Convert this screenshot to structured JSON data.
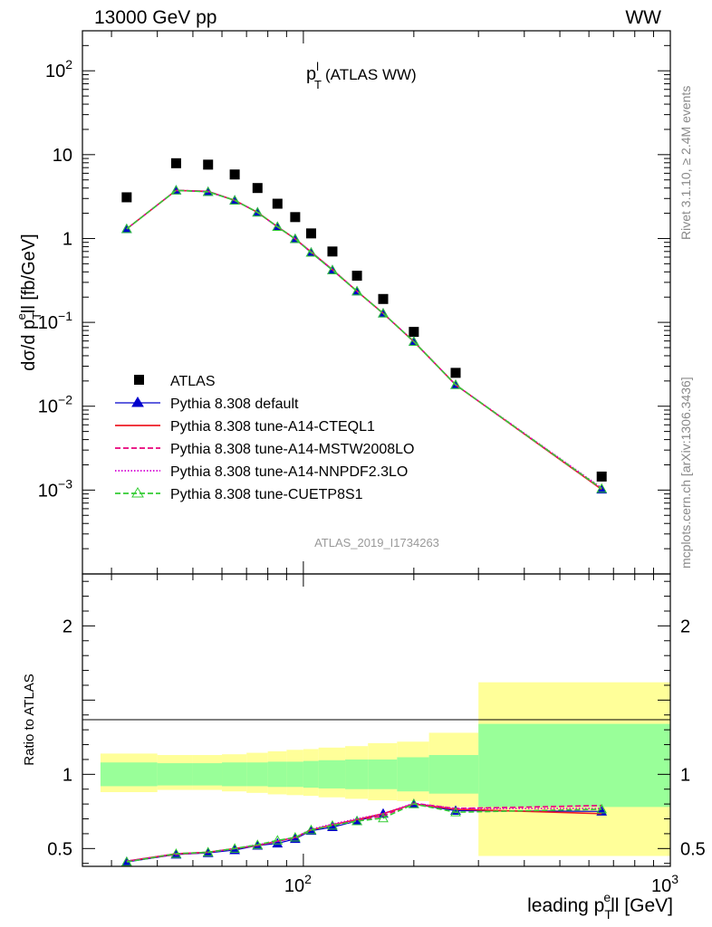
{
  "header": {
    "left": "13000 GeV pp",
    "right": "WW"
  },
  "side_labels": {
    "rivet": "Rivet 3.1.10, ≥ 2.4M events",
    "mcplots": "mcplots.cern.ch [arXiv:1306.3436]"
  },
  "colors": {
    "data": "#000000",
    "default": "#0000cc",
    "cteql1": "#ee1c24",
    "mstw": "#e8007a",
    "nnpdf": "#d400d4",
    "cuetp8s1": "#33cc33",
    "band_inner": "#99ff99",
    "band_outer": "#ffff99"
  },
  "chart_data": [
    {
      "type": "scatter",
      "title_main": "p",
      "title_sup": "l",
      "title_sub": "T",
      "title_rest": "(ATLAS WW)",
      "watermark": "ATLAS_2019_I1734263",
      "ylabel": {
        "pre": "dσ/d p",
        "sub": "T",
        "sup": "e",
        "post": "ll [fb/GeV]"
      },
      "log_y": true,
      "log_x": true,
      "xlim": [
        25,
        1000
      ],
      "ylim": [
        0.0001,
        300
      ],
      "yticks": [
        {
          "v": 0.001,
          "base": "10",
          "exp": "−3"
        },
        {
          "v": 0.01,
          "base": "10",
          "exp": "−2"
        },
        {
          "v": 0.1,
          "base": "10",
          "exp": "−1"
        },
        {
          "v": 1,
          "base": "1",
          "exp": ""
        },
        {
          "v": 10,
          "base": "10",
          "exp": ""
        },
        {
          "v": 100,
          "base": "10",
          "exp": "2"
        }
      ],
      "x": [
        33,
        45,
        55,
        65,
        75,
        85,
        95,
        105,
        120,
        140,
        165,
        200,
        260,
        650
      ],
      "series": [
        {
          "name": "ATLAS",
          "key": "data",
          "marker": "square",
          "values": [
            3.1,
            7.9,
            7.6,
            5.8,
            4.0,
            2.6,
            1.8,
            1.15,
            0.7,
            0.36,
            0.19,
            0.077,
            0.025,
            0.00145
          ]
        },
        {
          "name": "Pythia 8.308 default",
          "key": "default",
          "marker": "triangle",
          "values": [
            1.3,
            3.75,
            3.6,
            2.85,
            2.05,
            1.38,
            0.99,
            0.68,
            0.42,
            0.235,
            0.128,
            0.059,
            0.018,
            0.00102
          ]
        },
        {
          "name": "Pythia 8.308 tune-A14-CTEQL1",
          "key": "cteql1",
          "line": "solid",
          "values": [
            1.3,
            3.75,
            3.65,
            2.85,
            2.05,
            1.38,
            0.99,
            0.69,
            0.425,
            0.235,
            0.128,
            0.059,
            0.018,
            0.00102
          ]
        },
        {
          "name": "Pythia 8.308 tune-A14-MSTW2008LO",
          "key": "mstw",
          "line": "dashed",
          "values": [
            1.3,
            3.75,
            3.65,
            2.85,
            2.05,
            1.38,
            0.99,
            0.69,
            0.425,
            0.235,
            0.128,
            0.059,
            0.018,
            0.00104
          ]
        },
        {
          "name": "Pythia 8.308 tune-A14-NNPDF2.3LO",
          "key": "nnpdf",
          "line": "dotted",
          "values": [
            1.3,
            3.75,
            3.65,
            2.85,
            2.05,
            1.38,
            0.99,
            0.69,
            0.425,
            0.235,
            0.128,
            0.059,
            0.018,
            0.00106
          ]
        },
        {
          "name": "Pythia 8.308 tune-CUETP8S1",
          "key": "cuetp8s1",
          "line": "dashed",
          "marker": "open-triangle",
          "values": [
            1.3,
            3.75,
            3.6,
            2.85,
            2.05,
            1.38,
            0.99,
            0.68,
            0.42,
            0.235,
            0.128,
            0.059,
            0.018,
            0.00104
          ]
        }
      ]
    },
    {
      "type": "scatter",
      "ylabel": "Ratio to ATLAS",
      "xlabel": {
        "pre": "leading p",
        "sub": "T",
        "sup": "e",
        "post": "ll [GeV]"
      },
      "log_x": true,
      "xlim": [
        25,
        1000
      ],
      "ylim": [
        0.38,
        2.35
      ],
      "yticks": [
        {
          "v": 0.5,
          "label": "0.5"
        },
        {
          "v": 1,
          "label": "1"
        },
        {
          "v": 2,
          "label": "2"
        }
      ],
      "xticks": [
        {
          "v": 100,
          "base": "10",
          "exp": "2"
        },
        {
          "v": 1000,
          "base": "10",
          "exp": "3"
        }
      ],
      "bins": [
        28,
        40,
        50,
        60,
        70,
        80,
        90,
        100,
        110,
        130,
        150,
        180,
        220,
        300,
        1000
      ],
      "band_inner": [
        [
          0.92,
          1.08
        ],
        [
          0.925,
          1.075
        ],
        [
          0.925,
          1.075
        ],
        [
          0.92,
          1.08
        ],
        [
          0.92,
          1.08
        ],
        [
          0.915,
          1.085
        ],
        [
          0.915,
          1.085
        ],
        [
          0.91,
          1.09
        ],
        [
          0.905,
          1.095
        ],
        [
          0.9,
          1.1
        ],
        [
          0.9,
          1.1
        ],
        [
          0.885,
          1.115
        ],
        [
          0.87,
          1.13
        ],
        [
          0.78,
          1.34
        ]
      ],
      "band_outer": [
        [
          0.88,
          1.14
        ],
        [
          0.895,
          1.13
        ],
        [
          0.895,
          1.13
        ],
        [
          0.885,
          1.135
        ],
        [
          0.875,
          1.145
        ],
        [
          0.865,
          1.155
        ],
        [
          0.86,
          1.165
        ],
        [
          0.855,
          1.17
        ],
        [
          0.845,
          1.18
        ],
        [
          0.835,
          1.19
        ],
        [
          0.825,
          1.21
        ],
        [
          0.82,
          1.22
        ],
        [
          0.78,
          1.28
        ],
        [
          0.45,
          1.62
        ]
      ],
      "x": [
        33,
        45,
        55,
        65,
        75,
        85,
        95,
        105,
        120,
        140,
        165,
        200,
        260,
        650
      ],
      "series": [
        {
          "name": "Pythia 8.308 default",
          "key": "default",
          "marker": "triangle",
          "values": [
            0.41,
            0.46,
            0.47,
            0.49,
            0.52,
            0.535,
            0.565,
            0.62,
            0.645,
            0.685,
            0.735,
            0.8,
            0.755,
            0.75
          ]
        },
        {
          "name": "Pythia 8.308 tune-A14-CTEQL1",
          "key": "cteql1",
          "line": "solid",
          "values": [
            0.415,
            0.465,
            0.475,
            0.5,
            0.52,
            0.55,
            0.575,
            0.625,
            0.66,
            0.695,
            0.735,
            0.8,
            0.765,
            0.735
          ]
        },
        {
          "name": "Pythia 8.308 tune-A14-MSTW2008LO",
          "key": "mstw",
          "line": "dashed",
          "values": [
            0.415,
            0.46,
            0.475,
            0.5,
            0.52,
            0.55,
            0.57,
            0.625,
            0.655,
            0.69,
            0.72,
            0.805,
            0.77,
            0.79
          ]
        },
        {
          "name": "Pythia 8.308 tune-A14-NNPDF2.3LO",
          "key": "nnpdf",
          "line": "dotted",
          "values": [
            0.415,
            0.465,
            0.475,
            0.5,
            0.525,
            0.55,
            0.575,
            0.63,
            0.665,
            0.7,
            0.735,
            0.805,
            0.77,
            0.77
          ]
        },
        {
          "name": "Pythia 8.308 tune-CUETP8S1",
          "key": "cuetp8s1",
          "line": "dashed",
          "marker": "open-triangle",
          "values": [
            0.41,
            0.465,
            0.475,
            0.5,
            0.525,
            0.555,
            0.575,
            0.625,
            0.655,
            0.685,
            0.705,
            0.8,
            0.745,
            0.765
          ]
        }
      ]
    }
  ]
}
